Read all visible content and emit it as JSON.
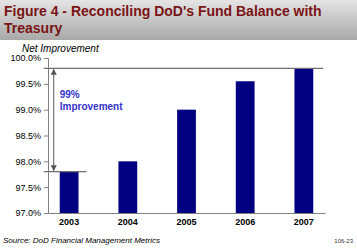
{
  "chart_data": {
    "type": "bar",
    "title": "Figure 4 - Reconciling DoD's Fund Balance with Treasury",
    "subtitle": "Net Improvement",
    "annotation": "99% Improvement",
    "source": "Source: DoD Financial Management Metrics",
    "footnote": "106-23",
    "categories": [
      "2003",
      "2004",
      "2005",
      "2006",
      "2007"
    ],
    "values": [
      97.8,
      98.0,
      99.0,
      99.55,
      99.8
    ],
    "color": "#000080",
    "ylim": [
      97,
      100
    ],
    "yticks": [
      {
        "value": 97,
        "label": "97.0%"
      },
      {
        "value": 97.5,
        "label": "97.5%"
      },
      {
        "value": 98,
        "label": "98.0%"
      },
      {
        "value": 98.5,
        "label": "98.5%"
      },
      {
        "value": 99,
        "label": "99.0%"
      },
      {
        "value": 99.5,
        "label": "99.5%"
      },
      {
        "value": 100,
        "label": "100.0%"
      }
    ],
    "grid": false
  }
}
